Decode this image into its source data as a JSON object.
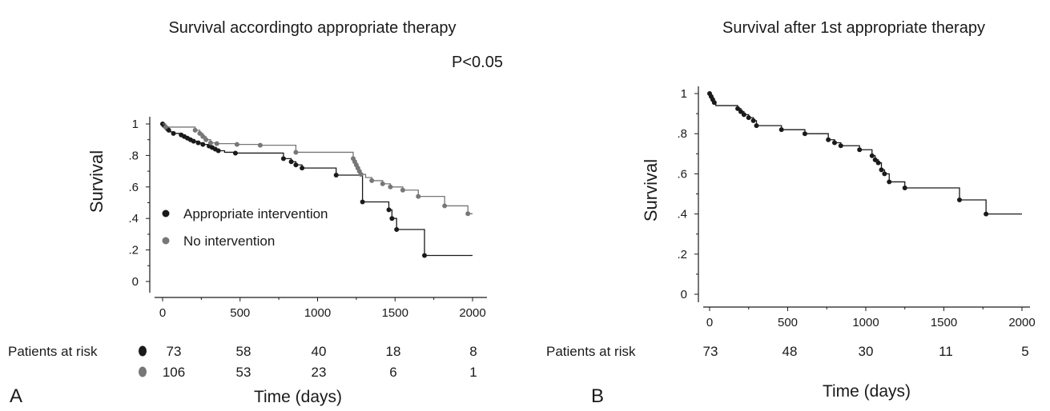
{
  "chart_data": [
    {
      "panel_label": "A",
      "type": "line",
      "title": "Survival accordingto appropriate therapy",
      "annotation": "P<0.05",
      "xlabel": "Time (days)",
      "ylabel": "Survival",
      "xlim": [
        0,
        2000
      ],
      "ylim": [
        0,
        1
      ],
      "x_ticks": [
        0,
        500,
        1000,
        1500,
        2000
      ],
      "x_tick_labels": [
        "0",
        "500",
        "1000",
        "1500",
        "2000"
      ],
      "y_ticks": [
        0,
        0.2,
        0.4,
        0.6,
        0.8,
        1
      ],
      "y_tick_labels": [
        "0",
        ".2",
        ".4",
        ".6",
        ".8",
        "1"
      ],
      "step": true,
      "legend_position": "bottom-left",
      "series": [
        {
          "name": "Appropriate intervention",
          "color": "#1a1a1a",
          "x": [
            0,
            10,
            20,
            30,
            40,
            50,
            70,
            120,
            140,
            160,
            180,
            200,
            230,
            260,
            300,
            320,
            340,
            360,
            400,
            470,
            780,
            830,
            860,
            900,
            1120,
            1290,
            1460,
            1480,
            1510,
            1690,
            2000
          ],
          "y": [
            1,
            0.99,
            0.98,
            0.97,
            0.96,
            0.95,
            0.94,
            0.93,
            0.92,
            0.91,
            0.9,
            0.89,
            0.88,
            0.87,
            0.86,
            0.85,
            0.84,
            0.83,
            0.82,
            0.815,
            0.78,
            0.76,
            0.74,
            0.72,
            0.675,
            0.505,
            0.455,
            0.4,
            0.33,
            0.165,
            0.165
          ],
          "markers": [
            0,
            10,
            20,
            30,
            40,
            70,
            120,
            140,
            160,
            180,
            200,
            230,
            260,
            300,
            320,
            340,
            360,
            470,
            780,
            830,
            860,
            900,
            1120,
            1290,
            1460,
            1480,
            1510,
            1690
          ]
        },
        {
          "name": "No intervention",
          "color": "#777777",
          "x": [
            0,
            20,
            210,
            240,
            260,
            280,
            310,
            350,
            480,
            630,
            860,
            1230,
            1240,
            1250,
            1260,
            1270,
            1280,
            1310,
            1350,
            1420,
            1470,
            1550,
            1650,
            1820,
            1970,
            2000
          ],
          "y": [
            1,
            0.98,
            0.96,
            0.94,
            0.92,
            0.9,
            0.88,
            0.875,
            0.87,
            0.865,
            0.82,
            0.78,
            0.76,
            0.74,
            0.72,
            0.7,
            0.68,
            0.66,
            0.64,
            0.62,
            0.6,
            0.58,
            0.54,
            0.48,
            0.43,
            0.43
          ],
          "markers": [
            20,
            210,
            240,
            260,
            280,
            310,
            350,
            480,
            630,
            860,
            1230,
            1240,
            1250,
            1260,
            1270,
            1280,
            1350,
            1420,
            1470,
            1550,
            1650,
            1820,
            1970
          ]
        }
      ],
      "risk_table": {
        "label": "Patients at risk",
        "rows": [
          {
            "color": "#1a1a1a",
            "values": [
              "73",
              "58",
              "40",
              "18",
              "8"
            ]
          },
          {
            "color": "#777777",
            "values": [
              "106",
              "53",
              "23",
              "6",
              "1"
            ]
          }
        ]
      }
    },
    {
      "panel_label": "B",
      "type": "line",
      "title": "Survival after 1st appropriate therapy",
      "xlabel": "Time (days)",
      "ylabel": "Survival",
      "xlim": [
        0,
        2000
      ],
      "ylim": [
        0,
        1
      ],
      "x_ticks": [
        0,
        500,
        1000,
        1500,
        2000
      ],
      "x_tick_labels": [
        "0",
        "500",
        "1000",
        "1500",
        "2000"
      ],
      "y_ticks": [
        0,
        0.2,
        0.4,
        0.6,
        0.8,
        1
      ],
      "y_tick_labels": [
        "0",
        ".2",
        ".4",
        ".6",
        ".8",
        "1"
      ],
      "step": true,
      "series": [
        {
          "color": "#1a1a1a",
          "x": [
            0,
            10,
            20,
            30,
            40,
            180,
            200,
            220,
            250,
            280,
            300,
            460,
            610,
            760,
            800,
            840,
            960,
            1040,
            1060,
            1080,
            1100,
            1120,
            1150,
            1250,
            1600,
            1770,
            2000
          ],
          "y": [
            1,
            0.985,
            0.97,
            0.955,
            0.94,
            0.925,
            0.91,
            0.895,
            0.88,
            0.865,
            0.84,
            0.82,
            0.8,
            0.77,
            0.755,
            0.74,
            0.72,
            0.69,
            0.67,
            0.655,
            0.62,
            0.6,
            0.56,
            0.53,
            0.47,
            0.4,
            0.4
          ],
          "markers": [
            0,
            10,
            20,
            30,
            180,
            200,
            220,
            250,
            280,
            300,
            460,
            610,
            760,
            800,
            840,
            960,
            1040,
            1060,
            1080,
            1100,
            1120,
            1150,
            1250,
            1600,
            1770
          ]
        }
      ],
      "risk_table": {
        "label": "Patients at risk",
        "rows": [
          {
            "values": [
              "73",
              "48",
              "30",
              "11",
              "5"
            ]
          }
        ]
      }
    }
  ]
}
